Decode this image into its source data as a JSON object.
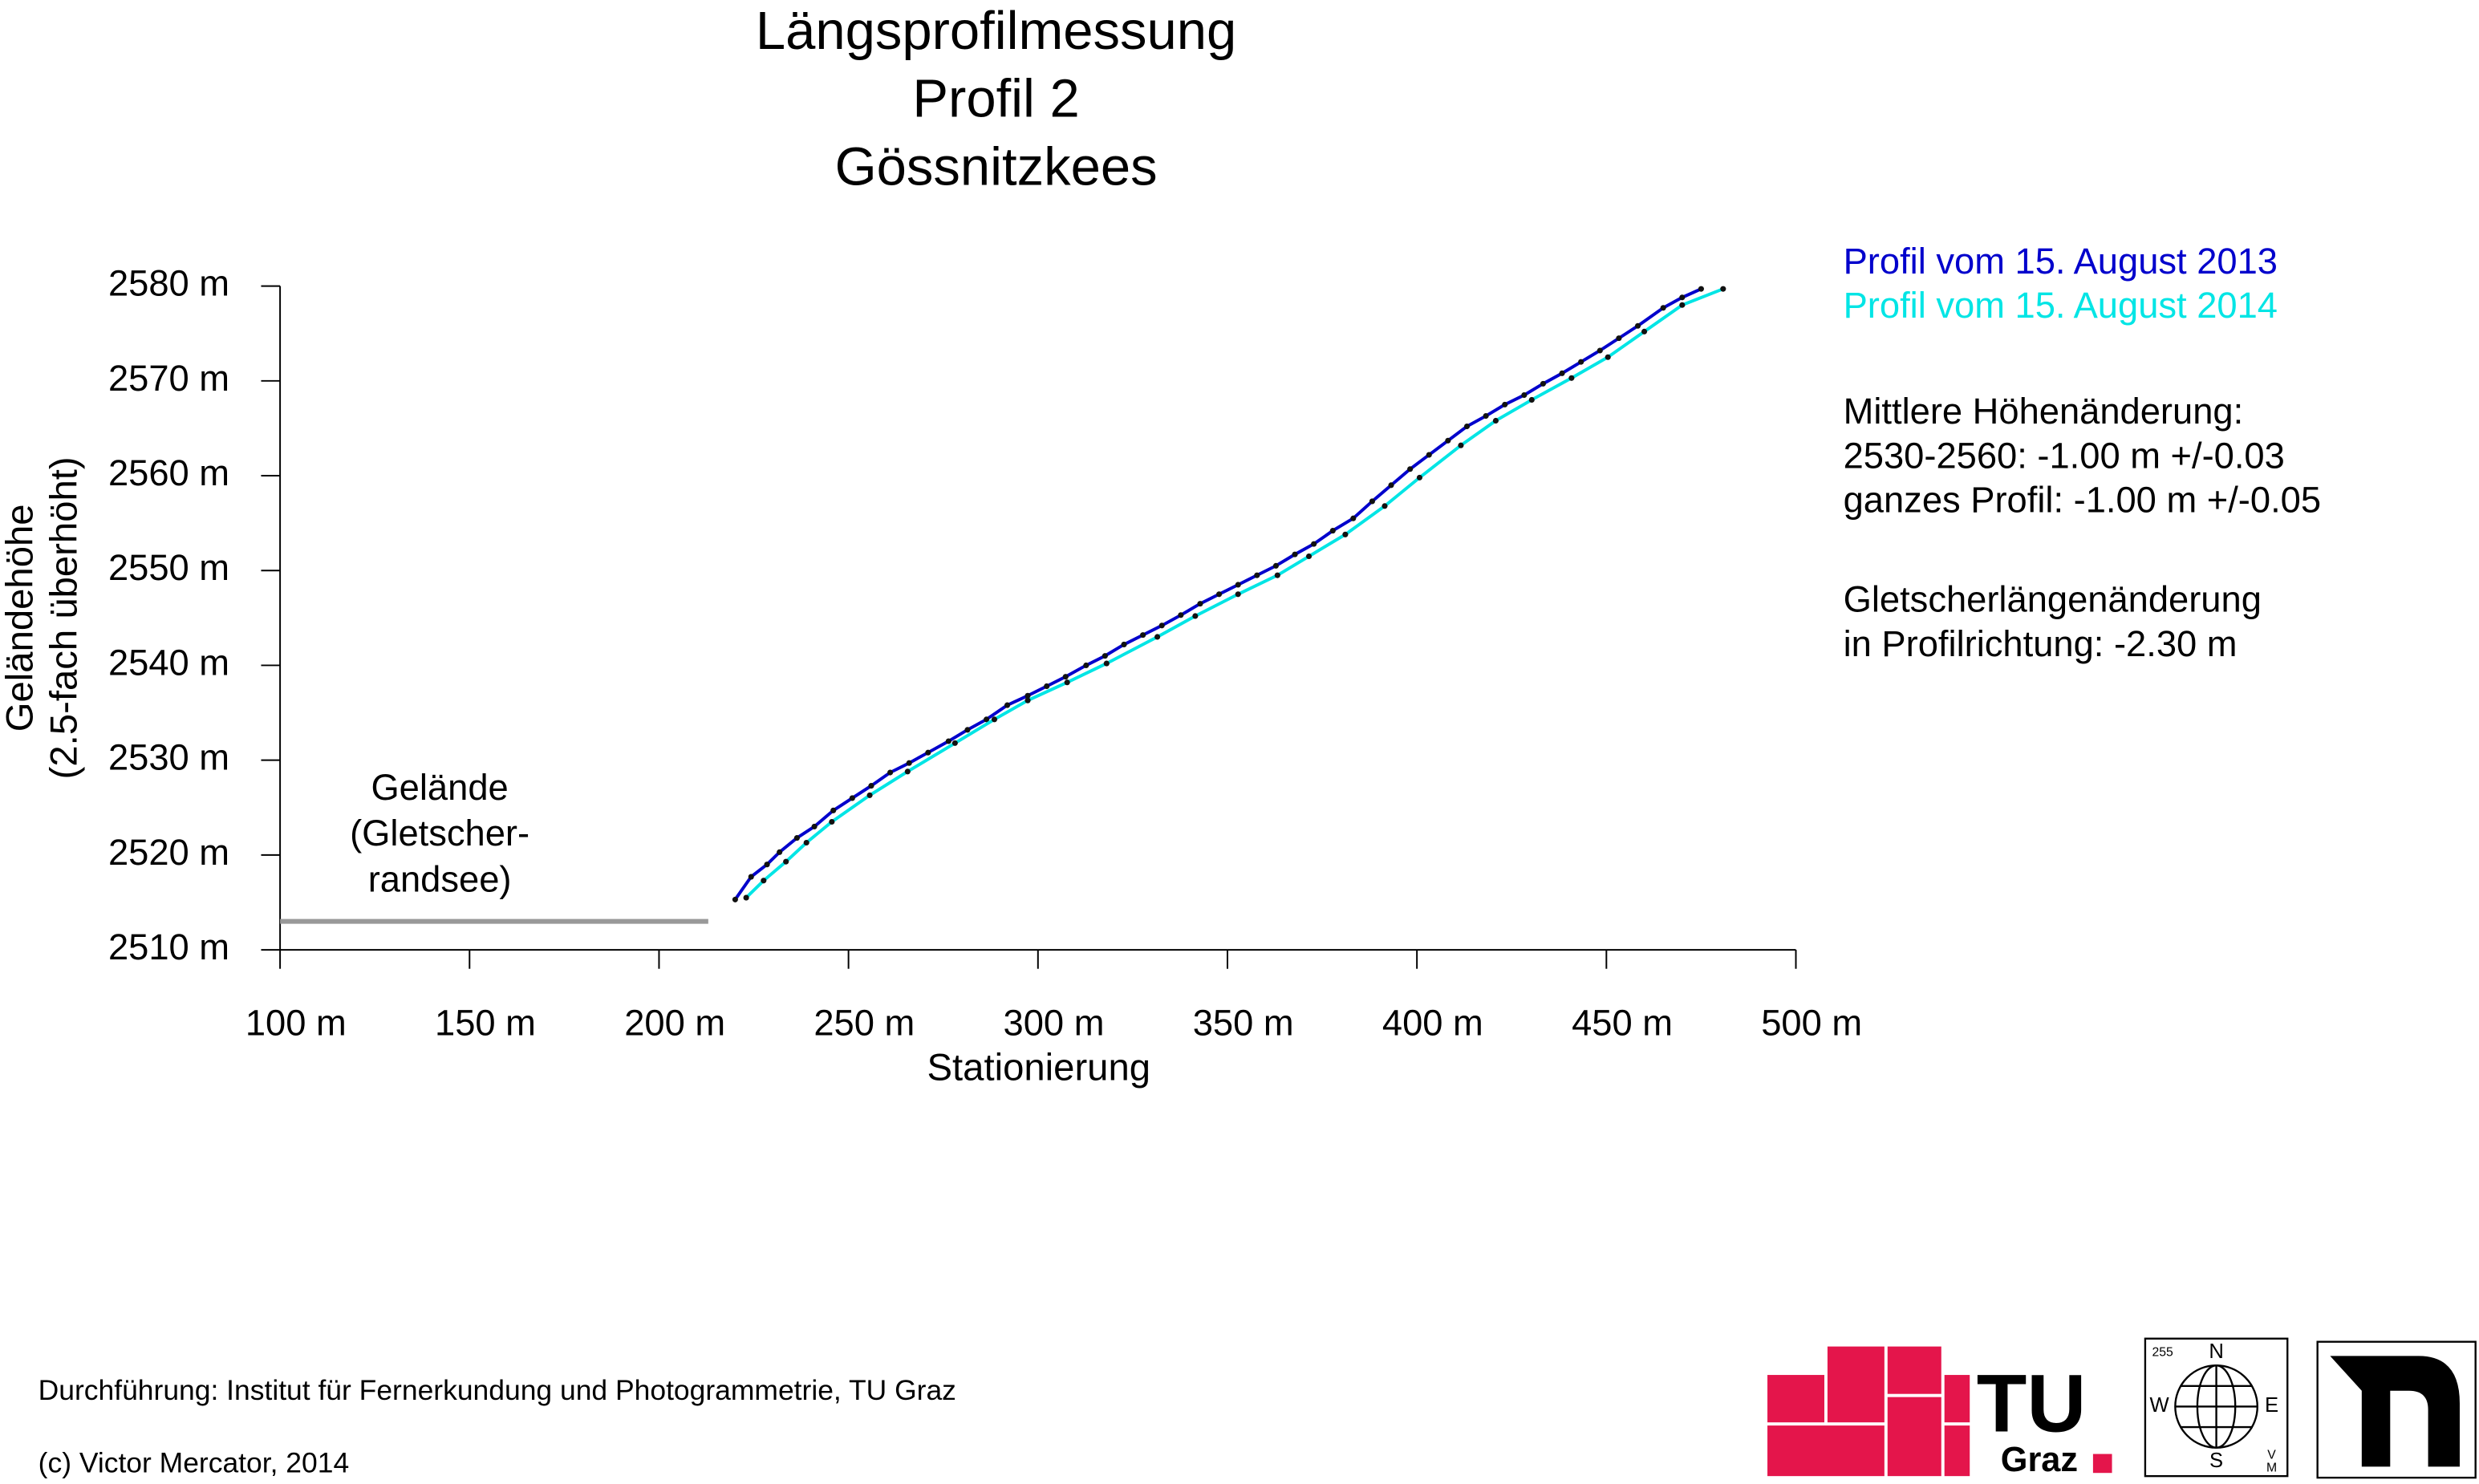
{
  "chart_data": {
    "type": "line",
    "title": [
      "Längsprofilmessung",
      "Profil 2",
      "Gössnitzkees"
    ],
    "xlabel": "Stationierung",
    "ylabel": [
      "Geländehöhe",
      "(2.5-fach überhöht)"
    ],
    "xlim": [
      100,
      500
    ],
    "ylim": [
      2510,
      2580
    ],
    "xticks": [
      {
        "value": 100,
        "label": "100 m"
      },
      {
        "value": 150,
        "label": "150 m"
      },
      {
        "value": 200,
        "label": "200 m"
      },
      {
        "value": 250,
        "label": "250 m"
      },
      {
        "value": 300,
        "label": "300 m"
      },
      {
        "value": 350,
        "label": "350 m"
      },
      {
        "value": 400,
        "label": "400 m"
      },
      {
        "value": 450,
        "label": "450 m"
      },
      {
        "value": 500,
        "label": "500 m"
      }
    ],
    "yticks": [
      {
        "value": 2510,
        "label": "2510 m"
      },
      {
        "value": 2520,
        "label": "2520 m"
      },
      {
        "value": 2530,
        "label": "2530 m"
      },
      {
        "value": 2540,
        "label": "2540 m"
      },
      {
        "value": 2550,
        "label": "2550 m"
      },
      {
        "value": 2560,
        "label": "2560 m"
      },
      {
        "value": 2570,
        "label": "2570 m"
      },
      {
        "value": 2580,
        "label": "2580 m"
      }
    ],
    "series": [
      {
        "name": "Profil vom 15. August 2013",
        "color": "#0000cc",
        "x": [
          220.1,
          224.3,
          228.5,
          231.8,
          236.4,
          241.0,
          246.0,
          251.0,
          256.0,
          261.0,
          266.0,
          271.0,
          276.4,
          281.4,
          286.4,
          291.9,
          297.3,
          302.3,
          307.3,
          312.7,
          317.7,
          322.7,
          327.7,
          332.7,
          337.7,
          342.8,
          347.8,
          352.8,
          357.8,
          362.8,
          367.8,
          372.8,
          377.8,
          383.2,
          388.2,
          393.2,
          398.2,
          403.2,
          408.2,
          413.2,
          418.2,
          423.2,
          428.3,
          433.3,
          438.3,
          443.3,
          448.3,
          453.3,
          458.3,
          465.0,
          470.0,
          475.0
        ],
        "values": [
          2515.3,
          2517.7,
          2519.0,
          2520.3,
          2521.8,
          2523.0,
          2524.7,
          2526.0,
          2527.3,
          2528.7,
          2529.7,
          2530.8,
          2532.0,
          2533.2,
          2534.3,
          2535.8,
          2536.8,
          2537.8,
          2538.8,
          2540.0,
          2541.0,
          2542.2,
          2543.2,
          2544.2,
          2545.3,
          2546.5,
          2547.5,
          2548.5,
          2549.5,
          2550.5,
          2551.7,
          2552.8,
          2554.2,
          2555.5,
          2557.3,
          2559.0,
          2560.7,
          2562.2,
          2563.7,
          2565.2,
          2566.3,
          2567.5,
          2568.5,
          2569.7,
          2570.8,
          2572.0,
          2573.2,
          2574.5,
          2575.8,
          2577.7,
          2578.8,
          2579.7
        ]
      },
      {
        "name": "Profil vom 15. August 2014",
        "color": "#00e5e5",
        "x": [
          223.0,
          227.6,
          233.5,
          238.9,
          245.6,
          255.6,
          265.6,
          278.1,
          288.5,
          297.3,
          307.7,
          318.1,
          331.5,
          341.5,
          352.8,
          363.2,
          371.5,
          381.1,
          391.5,
          400.7,
          411.6,
          420.8,
          430.3,
          440.8,
          450.4,
          460.0,
          470.0,
          480.8
        ],
        "values": [
          2515.5,
          2517.3,
          2519.3,
          2521.3,
          2523.5,
          2526.3,
          2528.8,
          2531.8,
          2534.3,
          2536.3,
          2538.2,
          2540.2,
          2543.0,
          2545.2,
          2547.5,
          2549.5,
          2551.5,
          2553.8,
          2556.8,
          2559.8,
          2563.2,
          2565.8,
          2568.0,
          2570.3,
          2572.5,
          2575.2,
          2578.0,
          2579.7
        ]
      }
    ],
    "terrain": {
      "label": [
        "Gelände",
        "(Gletscher-",
        "randsee)"
      ],
      "color": "#999999",
      "x": [
        100,
        213
      ],
      "values": [
        2513,
        2513
      ]
    },
    "notes": [
      [
        "Mittlere Höhenänderung:",
        "2530-2560: -1.00 m  +/-0.03",
        "ganzes Profil: -1.00 m  +/-0.05"
      ],
      [
        "Gletscherlängenänderung",
        "in Profilrichtung: -2.30 m"
      ]
    ],
    "footer": [
      "Durchführung: Institut für Fernerkundung und Photogrammetrie, TU Graz",
      "(c) Victor Mercator, 2014"
    ],
    "logos": {
      "tu": [
        "TU",
        "Graz"
      ],
      "compass": [
        "255",
        "N",
        "W",
        "E",
        "S",
        "V",
        "M"
      ]
    }
  }
}
